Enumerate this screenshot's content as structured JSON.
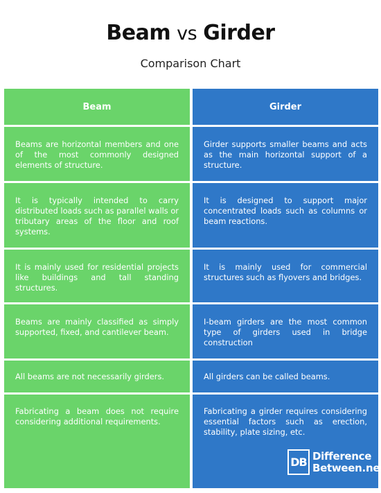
{
  "title": {
    "part1": "Beam",
    "vs": "vs",
    "part2": "Girder",
    "subtitle": "Comparison Chart"
  },
  "columns": {
    "left_header": "Beam",
    "right_header": "Girder"
  },
  "rows": [
    {
      "beam": "Beams are horizontal members and one of the most commonly designed elements of structure.",
      "girder": "Girder supports smaller beams and acts as the main horizontal support of a structure."
    },
    {
      "beam": "It is typically intended to carry distributed loads such as parallel walls or tributary areas of the floor and roof systems.",
      "girder": "It is designed to support major concentrated loads such as columns or beam reactions."
    },
    {
      "beam": "It is mainly used for residential projects like buildings and tall standing structures.",
      "girder": "It is mainly used for commercial structures such as flyovers and bridges."
    },
    {
      "beam": "Beams are mainly classified as simply supported, fixed, and cantilever beam.",
      "girder": "I-beam girders are the most common type of girders used in bridge construction"
    },
    {
      "beam": "All beams are not necessarily girders.",
      "girder": "All girders can be called beams."
    },
    {
      "beam": "Fabricating a beam does not require considering additional requirements.",
      "girder": "Fabricating a girder requires considering essential factors such as erection, stability, plate sizing, etc."
    }
  ],
  "logo": {
    "mark": "DB",
    "line1": "Difference",
    "line2": "Between.net"
  },
  "colors": {
    "beam_column": "#6ad46a",
    "girder_column": "#2f78c8"
  }
}
